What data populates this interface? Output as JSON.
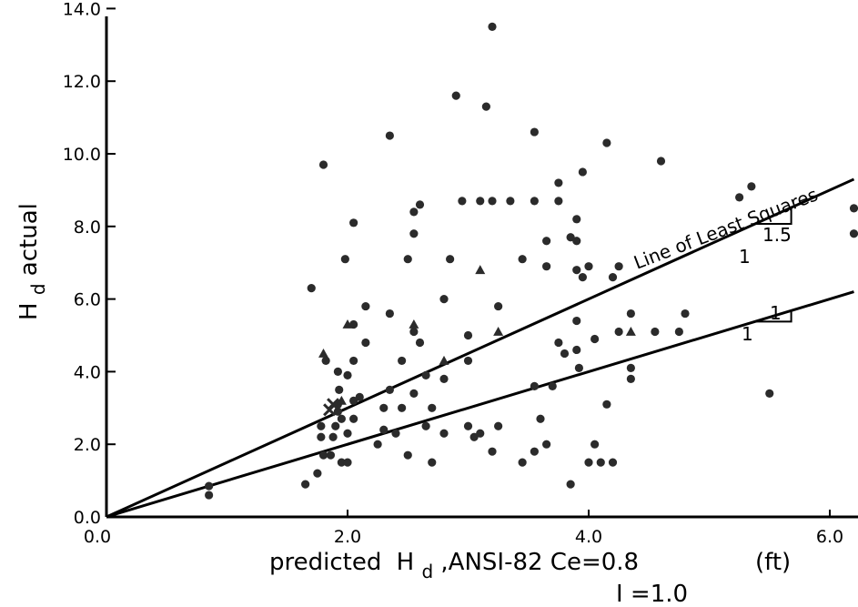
{
  "chart_data": {
    "type": "scatter",
    "xlabel_main": "predicted",
    "xlabel_h": "H",
    "xlabel_sub": "d",
    "xlabel_rest": ",ANSI-82  Ce=0.8",
    "xlabel_units": "(ft)",
    "xlabel_line2": "I =1.0",
    "ylabel_h": "H",
    "ylabel_sub": "d",
    "ylabel_rest": " actual",
    "xlim": [
      0,
      6.2
    ],
    "ylim": [
      0,
      14
    ],
    "x_ticks": [
      {
        "value": 0,
        "label": "0.0"
      },
      {
        "value": 2,
        "label": "2.0"
      },
      {
        "value": 4,
        "label": "4.0"
      },
      {
        "value": 6,
        "label": "6.0"
      }
    ],
    "y_ticks": [
      {
        "value": 0,
        "label": "0.0"
      },
      {
        "value": 2,
        "label": "2.0"
      },
      {
        "value": 4,
        "label": "4.0"
      },
      {
        "value": 6,
        "label": "6.0"
      },
      {
        "value": 8,
        "label": "8.0"
      },
      {
        "value": 10,
        "label": "10.0"
      },
      {
        "value": 12,
        "label": "12.0"
      },
      {
        "value": 14,
        "label": "14.0"
      }
    ],
    "lines": [
      {
        "label": "Line of Least Squares",
        "slope": 1.5,
        "slope_rise_label": "1.5",
        "slope_run_label": "1"
      },
      {
        "label": "",
        "slope": 1.0,
        "slope_rise_label": "1",
        "slope_run_label": "1"
      }
    ],
    "circle_points": [
      [
        0.85,
        0.85
      ],
      [
        0.85,
        0.6
      ],
      [
        1.65,
        0.9
      ],
      [
        1.7,
        6.3
      ],
      [
        1.75,
        1.2
      ],
      [
        1.78,
        2.5
      ],
      [
        1.78,
        2.2
      ],
      [
        1.8,
        1.7
      ],
      [
        1.82,
        4.3
      ],
      [
        1.8,
        9.7
      ],
      [
        1.86,
        1.7
      ],
      [
        1.88,
        2.2
      ],
      [
        1.9,
        2.5
      ],
      [
        1.92,
        2.9
      ],
      [
        1.92,
        3.1
      ],
      [
        1.93,
        3.5
      ],
      [
        1.95,
        2.7
      ],
      [
        1.92,
        4.0
      ],
      [
        1.95,
        1.5
      ],
      [
        2.0,
        1.5
      ],
      [
        2.0,
        2.3
      ],
      [
        1.98,
        7.1
      ],
      [
        2.0,
        3.9
      ],
      [
        2.05,
        2.7
      ],
      [
        2.05,
        3.2
      ],
      [
        2.05,
        4.3
      ],
      [
        2.05,
        5.3
      ],
      [
        2.05,
        8.1
      ],
      [
        2.1,
        3.3
      ],
      [
        2.15,
        4.8
      ],
      [
        2.15,
        5.8
      ],
      [
        2.25,
        2.0
      ],
      [
        2.3,
        2.4
      ],
      [
        2.3,
        3.0
      ],
      [
        2.35,
        3.5
      ],
      [
        2.35,
        5.6
      ],
      [
        2.35,
        10.5
      ],
      [
        2.4,
        2.3
      ],
      [
        2.45,
        3.0
      ],
      [
        2.45,
        4.3
      ],
      [
        2.5,
        1.7
      ],
      [
        2.5,
        7.1
      ],
      [
        2.55,
        3.4
      ],
      [
        2.55,
        5.1
      ],
      [
        2.55,
        7.8
      ],
      [
        2.55,
        8.4
      ],
      [
        2.6,
        4.8
      ],
      [
        2.65,
        2.5
      ],
      [
        2.65,
        3.9
      ],
      [
        2.6,
        8.6
      ],
      [
        2.7,
        1.5
      ],
      [
        2.7,
        3.0
      ],
      [
        2.8,
        2.3
      ],
      [
        2.8,
        3.8
      ],
      [
        2.8,
        6.0
      ],
      [
        2.85,
        7.1
      ],
      [
        2.9,
        11.6
      ],
      [
        2.95,
        8.7
      ],
      [
        3.0,
        2.5
      ],
      [
        3.0,
        4.3
      ],
      [
        3.0,
        5.0
      ],
      [
        3.05,
        2.2
      ],
      [
        3.1,
        2.3
      ],
      [
        3.1,
        8.7
      ],
      [
        3.15,
        11.3
      ],
      [
        3.2,
        1.8
      ],
      [
        3.2,
        8.7
      ],
      [
        3.2,
        13.5
      ],
      [
        3.25,
        2.5
      ],
      [
        3.25,
        5.8
      ],
      [
        3.35,
        8.7
      ],
      [
        3.45,
        1.5
      ],
      [
        3.45,
        7.1
      ],
      [
        3.55,
        1.8
      ],
      [
        3.55,
        3.6
      ],
      [
        3.55,
        8.7
      ],
      [
        3.55,
        10.6
      ],
      [
        3.6,
        2.7
      ],
      [
        3.65,
        2.0
      ],
      [
        3.65,
        6.9
      ],
      [
        3.65,
        7.6
      ],
      [
        3.7,
        3.6
      ],
      [
        3.75,
        4.8
      ],
      [
        3.75,
        8.7
      ],
      [
        3.75,
        9.2
      ],
      [
        3.8,
        4.5
      ],
      [
        3.85,
        0.9
      ],
      [
        3.85,
        7.7
      ],
      [
        3.9,
        4.6
      ],
      [
        3.9,
        5.4
      ],
      [
        3.9,
        6.8
      ],
      [
        3.9,
        8.2
      ],
      [
        3.9,
        7.6
      ],
      [
        3.92,
        4.1
      ],
      [
        3.95,
        6.6
      ],
      [
        3.95,
        9.5
      ],
      [
        4.0,
        1.5
      ],
      [
        4.0,
        6.9
      ],
      [
        4.05,
        2.0
      ],
      [
        4.05,
        4.9
      ],
      [
        4.1,
        1.5
      ],
      [
        4.15,
        3.1
      ],
      [
        4.15,
        10.3
      ],
      [
        4.2,
        1.5
      ],
      [
        4.2,
        6.6
      ],
      [
        4.25,
        5.1
      ],
      [
        4.25,
        6.9
      ],
      [
        4.35,
        3.8
      ],
      [
        4.35,
        4.1
      ],
      [
        4.35,
        5.6
      ],
      [
        4.55,
        5.1
      ],
      [
        4.6,
        9.8
      ],
      [
        4.75,
        5.1
      ],
      [
        4.8,
        5.6
      ],
      [
        5.25,
        8.8
      ],
      [
        5.35,
        9.1
      ],
      [
        5.5,
        3.4
      ],
      [
        6.2,
        7.8
      ],
      [
        6.2,
        8.5
      ]
    ],
    "triangle_points": [
      [
        1.8,
        4.5
      ],
      [
        1.95,
        3.2
      ],
      [
        2.0,
        5.3
      ],
      [
        2.55,
        5.3
      ],
      [
        2.8,
        4.3
      ],
      [
        3.1,
        6.8
      ],
      [
        3.25,
        5.1
      ],
      [
        4.35,
        5.1
      ]
    ],
    "cross_points": [
      [
        1.85,
        2.95
      ],
      [
        1.88,
        3.1
      ]
    ]
  }
}
